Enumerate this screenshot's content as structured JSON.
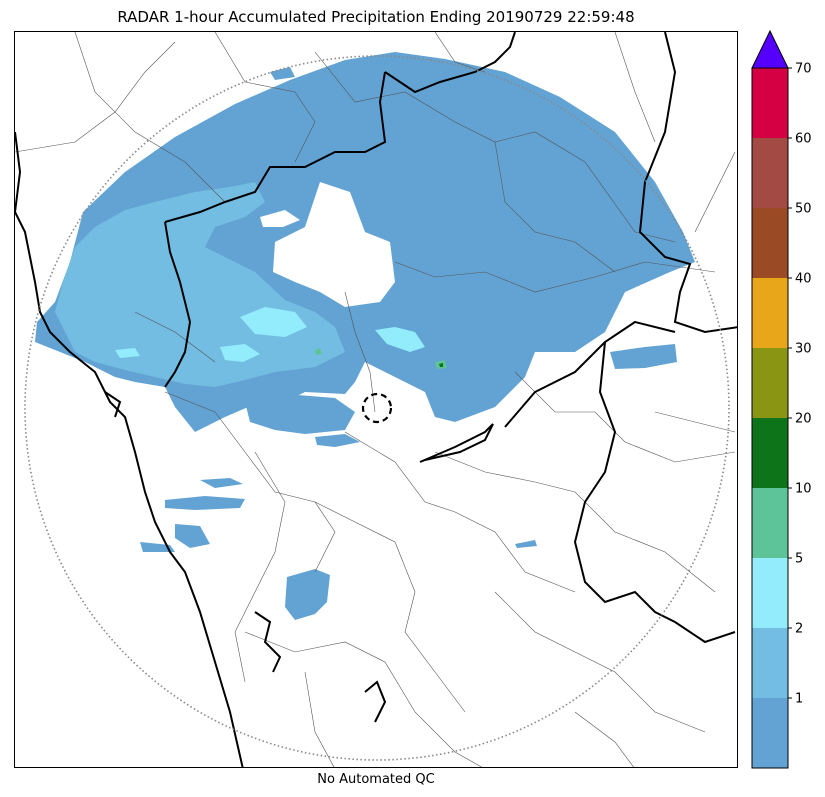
{
  "title": "RADAR 1-hour Accumulated Precipitation Ending 20190729 22:59:48",
  "footer": "No Automated QC",
  "colorbar": {
    "levels": [
      {
        "label": "",
        "color": "#62a3d4"
      },
      {
        "label": "1",
        "color": "#74bde2"
      },
      {
        "label": "2",
        "color": "#93ecfc"
      },
      {
        "label": "5",
        "color": "#5dc49a"
      },
      {
        "label": "10",
        "color": "#0e7419"
      },
      {
        "label": "20",
        "color": "#8a9514"
      },
      {
        "label": "30",
        "color": "#e8a71a"
      },
      {
        "label": "40",
        "color": "#9a4b26"
      },
      {
        "label": "50",
        "color": "#a44a44"
      },
      {
        "label": "60",
        "color": "#d40043"
      }
    ],
    "top_label": "70",
    "extend_color": "#5500ff"
  },
  "map": {
    "range_ring_color": "#888888",
    "radar_marker": "dashed-circle"
  }
}
